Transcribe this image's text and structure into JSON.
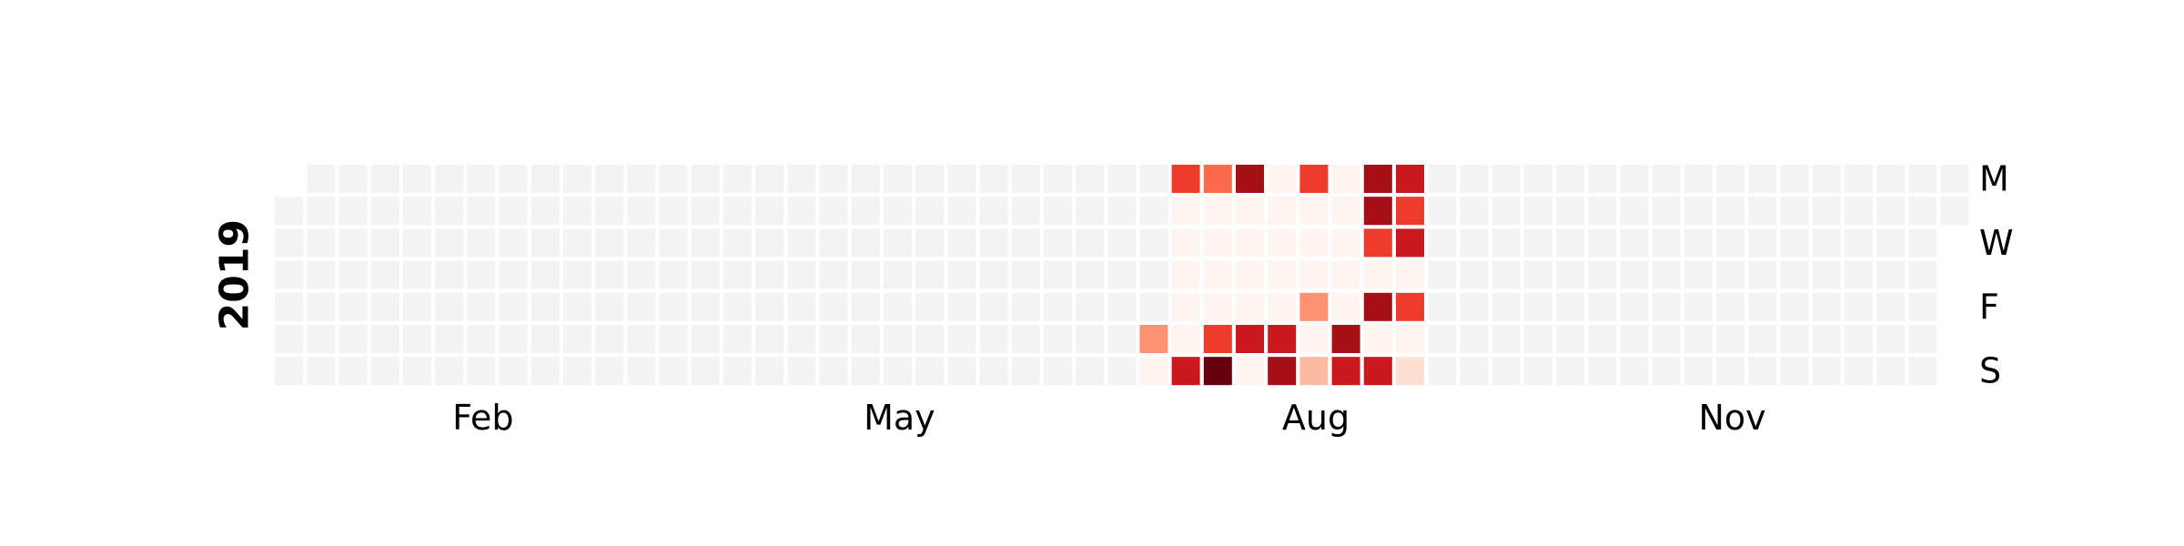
{
  "chart_data": {
    "type": "heatmap",
    "subtype": "calendar",
    "year_label": "2019",
    "x_tick_labels": [
      {
        "label": "Feb",
        "week": 6.5
      },
      {
        "label": "May",
        "week": 19.5
      },
      {
        "label": "Aug",
        "week": 32.5
      },
      {
        "label": "Nov",
        "week": 45.5
      }
    ],
    "y_tick_labels": [
      {
        "label": "M",
        "weekday": 0
      },
      {
        "label": "W",
        "weekday": 2
      },
      {
        "label": "F",
        "weekday": 4
      },
      {
        "label": "S",
        "weekday": 6
      }
    ],
    "colors": {
      "empty": "#f3f3f3",
      "scale": [
        "#fff5f0",
        "#fee0d2",
        "#fcbba1",
        "#fc9272",
        "#fb6a4a",
        "#ef3b2c",
        "#cb181d",
        "#a50f15",
        "#67000d"
      ]
    },
    "value_range": [
      0,
      8
    ],
    "weeks": 53,
    "first_week_start_weekday": 1,
    "last_week_end_weekday": 1,
    "active_weeks": [
      28,
      35
    ],
    "active_extra_cells": [
      {
        "week": 27,
        "weekday": 5,
        "value": 3
      },
      {
        "week": 27,
        "weekday": 6,
        "value": 0
      }
    ],
    "grid": [
      {
        "week": 28,
        "values": [
          5,
          0,
          0,
          0,
          0,
          0,
          6
        ]
      },
      {
        "week": 29,
        "values": [
          4,
          0,
          0,
          0,
          0,
          5,
          8
        ]
      },
      {
        "week": 30,
        "values": [
          7,
          0,
          0,
          0,
          0,
          6,
          0
        ]
      },
      {
        "week": 31,
        "values": [
          0,
          0,
          0,
          0,
          0,
          6,
          7
        ]
      },
      {
        "week": 32,
        "values": [
          5,
          0,
          0,
          0,
          3,
          0,
          2
        ]
      },
      {
        "week": 33,
        "values": [
          0,
          0,
          0,
          0,
          0,
          7,
          6
        ]
      },
      {
        "week": 34,
        "values": [
          7,
          7,
          5,
          0,
          7,
          0,
          6
        ]
      },
      {
        "week": 35,
        "values": [
          6,
          5,
          6,
          0,
          5,
          0,
          1
        ]
      }
    ]
  }
}
